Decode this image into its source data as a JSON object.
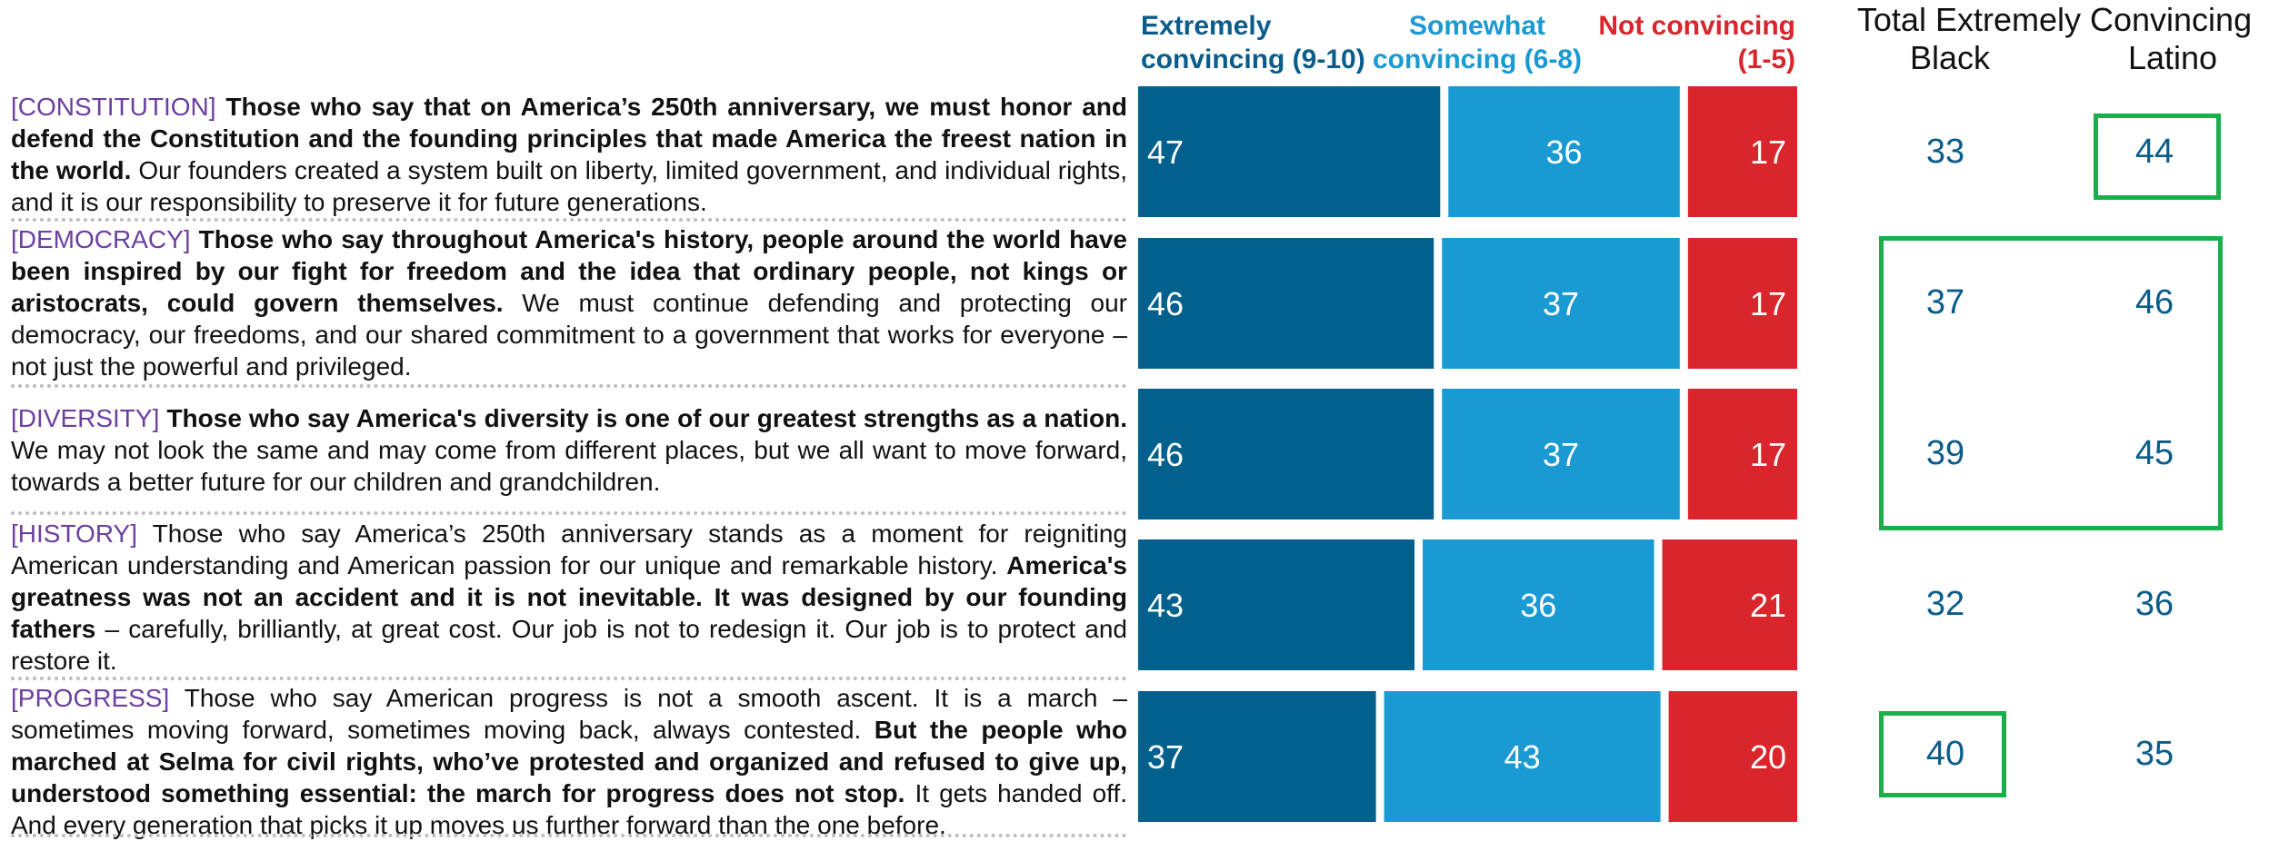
{
  "rows": [
    {
      "tag": "[CONSTITUTION]",
      "bold": " Those who say that on America’s 250th anniversary, we must honor and defend the Constitution and the founding principles that made America the freest nation in the world.",
      "rest": " Our founders created a system built on liberty, limited government, and individual rights, and it is our responsibility to preserve it for future generations."
    },
    {
      "tag": "[DEMOCRACY]",
      "bold": " Those who say throughout America's history, people around the world have been inspired by our fight for freedom and the idea that ordinary people, not kings or aristocrats, could govern themselves.",
      "rest": " We must continue defending and protecting our democracy, our freedoms, and our shared commitment to a government that works for everyone – not just the powerful and privileged."
    },
    {
      "tag": "[DIVERSITY]",
      "bold": " Those who say America's diversity is one of our greatest strengths as a nation.",
      "rest": " We may not look the same and may come from different places, but we all want to move forward, towards a better future for our children and grandchildren."
    },
    {
      "tag": "[HISTORY]",
      "pre": " Those who say America’s 250th anniversary stands as a moment for reigniting American understanding and American passion for our unique and remarkable history. ",
      "bold": "America's greatness was not an accident and it is not inevitable. It was designed by our founding fathers",
      "rest": " – carefully, brilliantly, at great cost. Our job is not to redesign it. Our job is to protect and restore it."
    },
    {
      "tag": "[PROGRESS]",
      "pre": " Those who say American progress is not a smooth ascent. It is a march – sometimes moving forward, sometimes moving back, always contested. ",
      "bold": "But the people who marched at Selma for civil rights, who’ve protested and organized and refused to give up, understood something essential: the march for progress does not stop.",
      "rest": " It gets handed off. And every generation that picks it up moves us further forward than the one before."
    }
  ],
  "headers": {
    "extremely": "Extremely convincing (9-10)",
    "somewhat": "Somewhat convincing (6-8)",
    "not": "Not convincing (1-5)",
    "subgroup_title": "Total Extremely Convincing",
    "black": "Black",
    "latino": "Latino"
  },
  "colors": {
    "extremely": "#02608c",
    "somewhat": "#1a9ad2",
    "not": "#d9252b",
    "tag": "#6b3fa0",
    "highlight": "#19b04c"
  },
  "chart_data": {
    "type": "bar",
    "orientation": "horizontal-stacked-100",
    "categories": [
      "[CONSTITUTION]",
      "[DEMOCRACY]",
      "[DIVERSITY]",
      "[HISTORY]",
      "[PROGRESS]"
    ],
    "series": [
      {
        "name": "Extremely convincing (9-10)",
        "values": [
          47,
          46,
          46,
          43,
          37
        ]
      },
      {
        "name": "Somewhat convincing (6-8)",
        "values": [
          36,
          37,
          37,
          36,
          43
        ]
      },
      {
        "name": "Not convincing (1-5)",
        "values": [
          17,
          17,
          17,
          21,
          20
        ]
      }
    ],
    "subgroups": {
      "Black": [
        33,
        37,
        39,
        32,
        40
      ],
      "Latino": [
        44,
        46,
        45,
        36,
        35
      ]
    },
    "highlighted": {
      "Black": [
        false,
        true,
        true,
        false,
        true
      ],
      "Latino": [
        true,
        true,
        true,
        false,
        false
      ]
    },
    "legend": "top"
  }
}
